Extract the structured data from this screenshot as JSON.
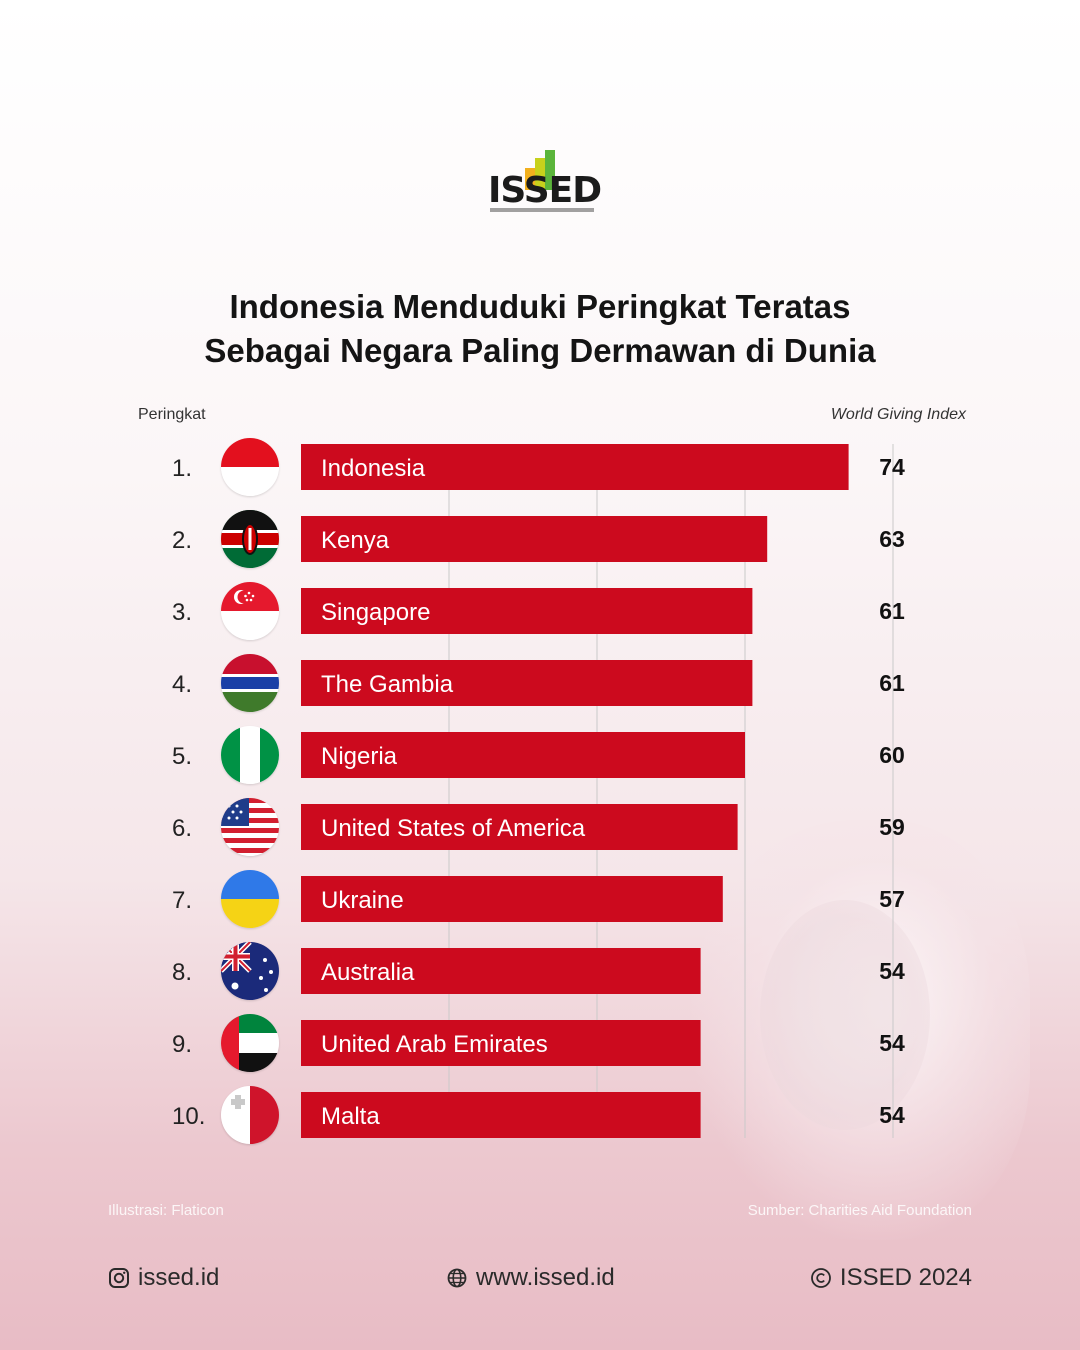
{
  "logo": {
    "text": "ISSED"
  },
  "title_line1": "Indonesia Menduduki Peringkat Teratas",
  "title_line2": "Sebagai Negara Paling Dermawan di Dunia",
  "header_left": "Peringkat",
  "header_right": "World Giving Index",
  "chart_data": {
    "type": "bar",
    "orientation": "horizontal",
    "categories": [
      "Indonesia",
      "Kenya",
      "Singapore",
      "The Gambia",
      "Nigeria",
      "United States of America",
      "Ukraine",
      "Australia",
      "United Arab Emirates",
      "Malta"
    ],
    "ranks": [
      "1.",
      "2.",
      "3.",
      "4.",
      "5.",
      "6.",
      "7.",
      "8.",
      "9.",
      "10."
    ],
    "values": [
      74,
      63,
      61,
      61,
      60,
      59,
      57,
      54,
      54,
      54
    ],
    "bar_color": "#cc0a1e",
    "xlim": [
      0,
      80
    ],
    "grid": true,
    "flag_icons": [
      "indonesia-flag-icon",
      "kenya-flag-icon",
      "singapore-flag-icon",
      "gambia-flag-icon",
      "nigeria-flag-icon",
      "usa-flag-icon",
      "ukraine-flag-icon",
      "australia-flag-icon",
      "uae-flag-icon",
      "malta-flag-icon"
    ]
  },
  "footnote_left": "Illustrasi: Flaticon",
  "footnote_right": "Sumber: Charities Aid Foundation",
  "footer": {
    "instagram": "issed.id",
    "website": "www.issed.id",
    "copyright": "ISSED 2024"
  },
  "icons": {
    "instagram": "instagram-icon",
    "website": "globe-icon",
    "copyright": "copyright-icon"
  }
}
